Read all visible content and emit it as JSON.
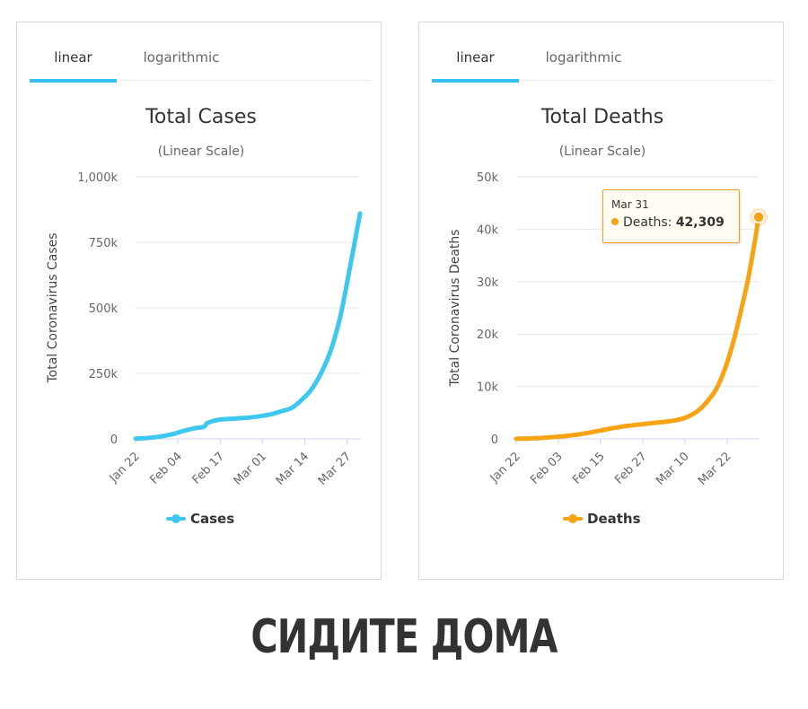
{
  "colors": {
    "cases": "#3ec8f0",
    "deaths": "#f7a313",
    "tab_accent": "#33c0f0"
  },
  "chart_data": [
    {
      "type": "line",
      "tabs": [
        "linear",
        "logarithmic"
      ],
      "active_tab": "linear",
      "title": "Total Cases",
      "subtitle": "(Linear Scale)",
      "ylabel": "Total Coronavirus Cases",
      "ylim": [
        0,
        1000000
      ],
      "yticks": [
        0,
        250000,
        500000,
        750000,
        1000000
      ],
      "ytick_labels": [
        "0",
        "250k",
        "500k",
        "750k",
        "1,000k"
      ],
      "xtick_labels": [
        "Jan 22",
        "Feb 04",
        "Feb 17",
        "Mar 01",
        "Mar 14",
        "Mar 27"
      ],
      "series": [
        {
          "name": "Cases",
          "x": [
            "Jan 22",
            "Jan 25",
            "Jan 28",
            "Jan 31",
            "Feb 03",
            "Feb 06",
            "Feb 09",
            "Feb 12",
            "Feb 13",
            "Feb 15",
            "Feb 18",
            "Feb 21",
            "Feb 24",
            "Feb 27",
            "Mar 01",
            "Mar 04",
            "Mar 07",
            "Mar 10",
            "Mar 13",
            "Mar 16",
            "Mar 19",
            "Mar 22",
            "Mar 25",
            "Mar 28",
            "Mar 31"
          ],
          "values": [
            555,
            2900,
            6200,
            12000,
            20000,
            31000,
            40000,
            46000,
            60000,
            69000,
            75000,
            77000,
            79500,
            83000,
            88000,
            95000,
            106000,
            118000,
            148000,
            188000,
            250000,
            337000,
            470000,
            660000,
            860000
          ]
        }
      ],
      "legend": "bottom-center"
    },
    {
      "type": "line",
      "tabs": [
        "linear",
        "logarithmic"
      ],
      "active_tab": "linear",
      "title": "Total Deaths",
      "subtitle": "(Linear Scale)",
      "ylabel": "Total Coronavirus Deaths",
      "ylim": [
        0,
        50000
      ],
      "yticks": [
        0,
        10000,
        20000,
        30000,
        40000,
        50000
      ],
      "ytick_labels": [
        "0",
        "10k",
        "20k",
        "30k",
        "40k",
        "50k"
      ],
      "xtick_labels": [
        "Jan 22",
        "Feb 03",
        "Feb 15",
        "Feb 27",
        "Mar 10",
        "Mar 22"
      ],
      "series": [
        {
          "name": "Deaths",
          "x": [
            "Jan 22",
            "Jan 26",
            "Jan 30",
            "Feb 03",
            "Feb 07",
            "Feb 11",
            "Feb 15",
            "Feb 19",
            "Feb 23",
            "Feb 27",
            "Mar 02",
            "Mar 06",
            "Mar 10",
            "Mar 14",
            "Mar 18",
            "Mar 20",
            "Mar 22",
            "Mar 24",
            "Mar 26",
            "Mar 28",
            "Mar 30",
            "Mar 31"
          ],
          "values": [
            17,
            80,
            200,
            420,
            700,
            1100,
            1600,
            2100,
            2500,
            2800,
            3100,
            3400,
            4000,
            5500,
            8500,
            11000,
            14500,
            19000,
            24500,
            30500,
            38000,
            42309
          ]
        }
      ],
      "tooltip": {
        "date": "Mar 31",
        "label": "Deaths:",
        "value": "42,309"
      },
      "legend": "bottom-center"
    }
  ],
  "caption": "СИДИТЕ ДОМА"
}
